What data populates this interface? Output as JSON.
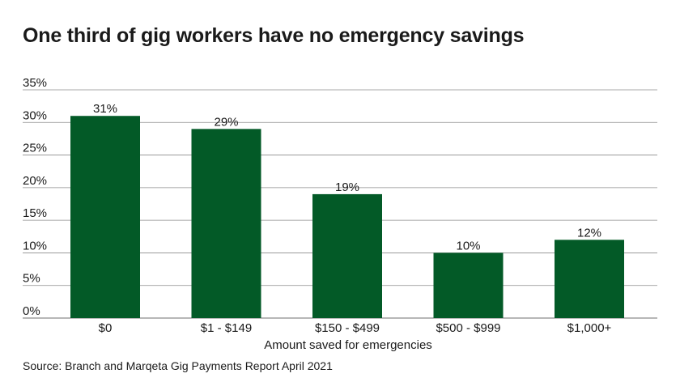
{
  "title": "One third of gig workers have no emergency savings",
  "source": "Source: Branch and Marqeta Gig Payments Report April 2021",
  "colors": {
    "bar": "#035a27",
    "grid": "#8c8c8c",
    "text": "#1a1a1a"
  },
  "chart_data": {
    "type": "bar",
    "categories": [
      "$0",
      "$1 - $149",
      "$150 - $499",
      "$500 - $999",
      "$1,000+"
    ],
    "values": [
      31,
      29,
      19,
      10,
      12
    ],
    "data_labels": [
      "31%",
      "29%",
      "19%",
      "10%",
      "12%"
    ],
    "title": "One third of gig workers have no emergency savings",
    "xlabel": "Amount saved for emergencies",
    "ylabel": "",
    "ylim": [
      0,
      35
    ],
    "yticks": [
      0,
      5,
      10,
      15,
      20,
      25,
      30,
      35
    ],
    "ytick_labels": [
      "0%",
      "5%",
      "10%",
      "15%",
      "20%",
      "25%",
      "30%",
      "35%"
    ],
    "grid": true,
    "legend": "none"
  }
}
